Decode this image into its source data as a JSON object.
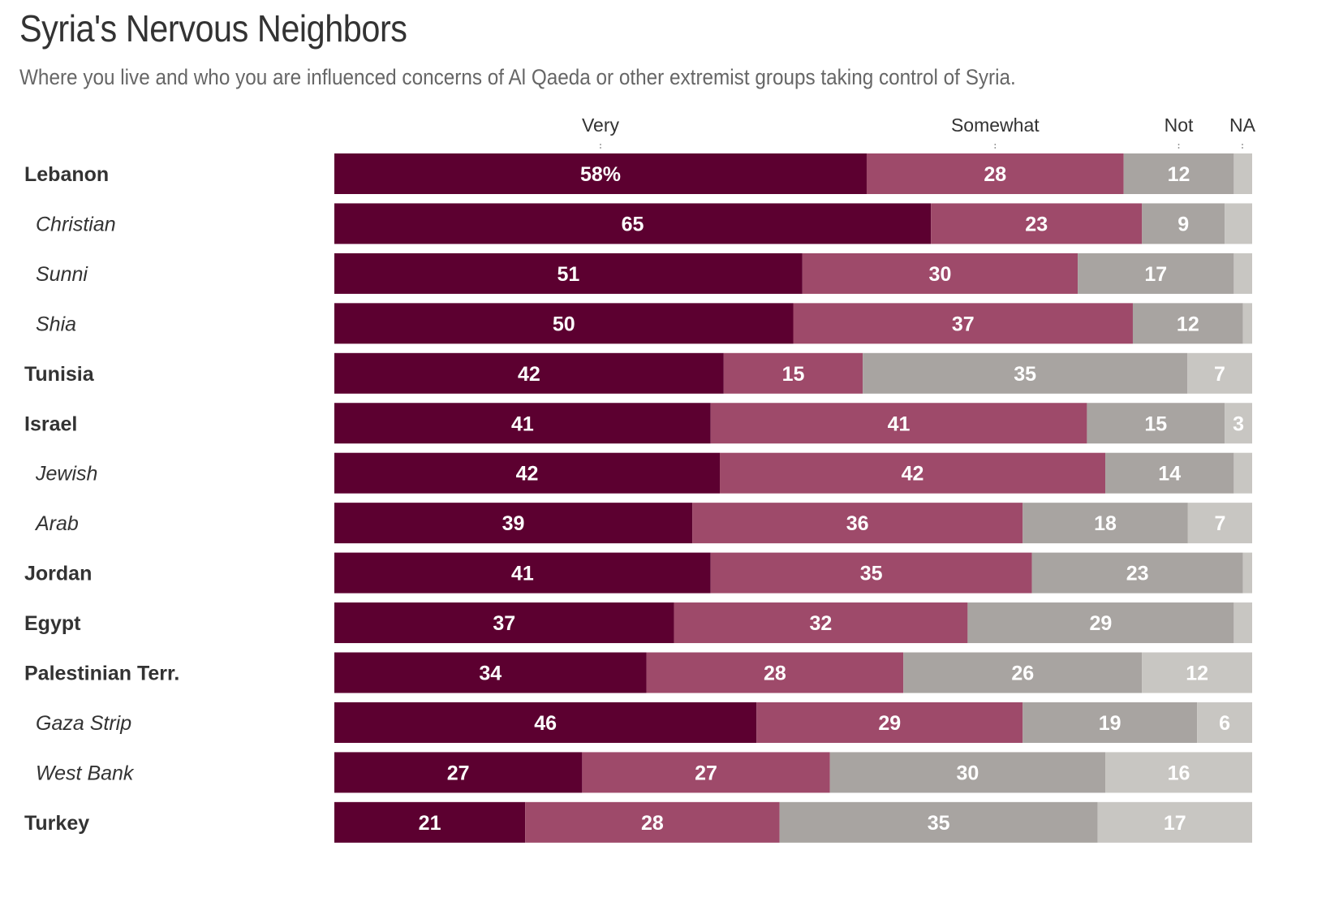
{
  "chart_data": {
    "type": "bar",
    "orientation": "horizontal",
    "stacked": true,
    "title": "Syria's Nervous Neighbors",
    "subtitle": "Where you live and who you are influenced concerns of Al Qaeda or other extremist groups taking control of Syria.",
    "xlabel": "",
    "ylabel": "",
    "unit": "%",
    "xlim": [
      0,
      100
    ],
    "legend_position": "top",
    "series": [
      {
        "name": "Very",
        "color": "#5c0030"
      },
      {
        "name": "Somewhat",
        "color": "#9e4a6a"
      },
      {
        "name": "Not",
        "color": "#a8a4a1"
      },
      {
        "name": "NA",
        "color": "#c8c6c2"
      }
    ],
    "rows": [
      {
        "label": "Lebanon",
        "level": "country",
        "values": [
          58,
          28,
          12,
          2
        ],
        "labels": [
          "58%",
          "28",
          "12",
          ""
        ]
      },
      {
        "label": "Christian",
        "level": "group",
        "values": [
          65,
          23,
          9,
          3
        ],
        "labels": [
          "65",
          "23",
          "9",
          ""
        ]
      },
      {
        "label": "Sunni",
        "level": "group",
        "values": [
          51,
          30,
          17,
          2
        ],
        "labels": [
          "51",
          "30",
          "17",
          ""
        ]
      },
      {
        "label": "Shia",
        "level": "group",
        "values": [
          50,
          37,
          12,
          1
        ],
        "labels": [
          "50",
          "37",
          "12",
          ""
        ]
      },
      {
        "label": "Tunisia",
        "level": "country",
        "values": [
          42,
          15,
          35,
          7
        ],
        "labels": [
          "42",
          "15",
          "35",
          "7"
        ]
      },
      {
        "label": "Israel",
        "level": "country",
        "values": [
          41,
          41,
          15,
          3
        ],
        "labels": [
          "41",
          "41",
          "15",
          "3"
        ]
      },
      {
        "label": "Jewish",
        "level": "group",
        "values": [
          42,
          42,
          14,
          2
        ],
        "labels": [
          "42",
          "42",
          "14",
          ""
        ]
      },
      {
        "label": "Arab",
        "level": "group",
        "values": [
          39,
          36,
          18,
          7
        ],
        "labels": [
          "39",
          "36",
          "18",
          "7"
        ]
      },
      {
        "label": "Jordan",
        "level": "country",
        "values": [
          41,
          35,
          23,
          1
        ],
        "labels": [
          "41",
          "35",
          "23",
          ""
        ]
      },
      {
        "label": "Egypt",
        "level": "country",
        "values": [
          37,
          32,
          29,
          2
        ],
        "labels": [
          "37",
          "32",
          "29",
          ""
        ]
      },
      {
        "label": "Palestinian Terr.",
        "level": "country",
        "values": [
          34,
          28,
          26,
          12
        ],
        "labels": [
          "34",
          "28",
          "26",
          "12"
        ]
      },
      {
        "label": "Gaza Strip",
        "level": "group",
        "values": [
          46,
          29,
          19,
          6
        ],
        "labels": [
          "46",
          "29",
          "19",
          "6"
        ]
      },
      {
        "label": "West Bank",
        "level": "group",
        "values": [
          27,
          27,
          30,
          16
        ],
        "labels": [
          "27",
          "27",
          "30",
          "16"
        ]
      },
      {
        "label": "Turkey",
        "level": "country",
        "values": [
          21,
          28,
          35,
          17
        ],
        "labels": [
          "21",
          "28",
          "35",
          "17"
        ]
      }
    ]
  }
}
